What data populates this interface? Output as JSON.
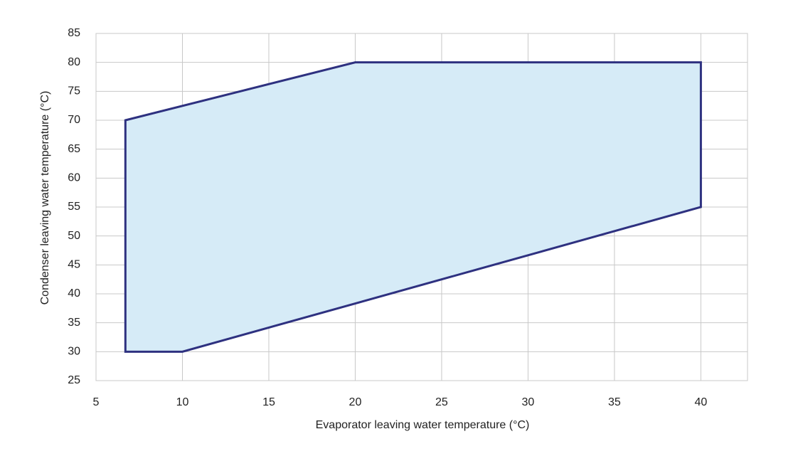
{
  "chart_data": {
    "type": "polygon",
    "xlabel": "Evaporator leaving water temperature (°C)",
    "ylabel": "Condenser leaving water temperature (°C)",
    "x": [
      6.7,
      20,
      40,
      40,
      10,
      6.7
    ],
    "values": [
      70,
      80,
      80,
      55,
      30,
      30
    ],
    "color": "#2e3180",
    "fill": "#d6ebf7",
    "xlim": [
      5,
      42.7
    ],
    "ylim": [
      25,
      85
    ],
    "xticks": [
      5,
      10,
      15,
      20,
      25,
      30,
      35,
      40
    ],
    "yticks": [
      25,
      30,
      35,
      40,
      45,
      50,
      55,
      60,
      65,
      70,
      75,
      80,
      85
    ],
    "grid": true
  }
}
